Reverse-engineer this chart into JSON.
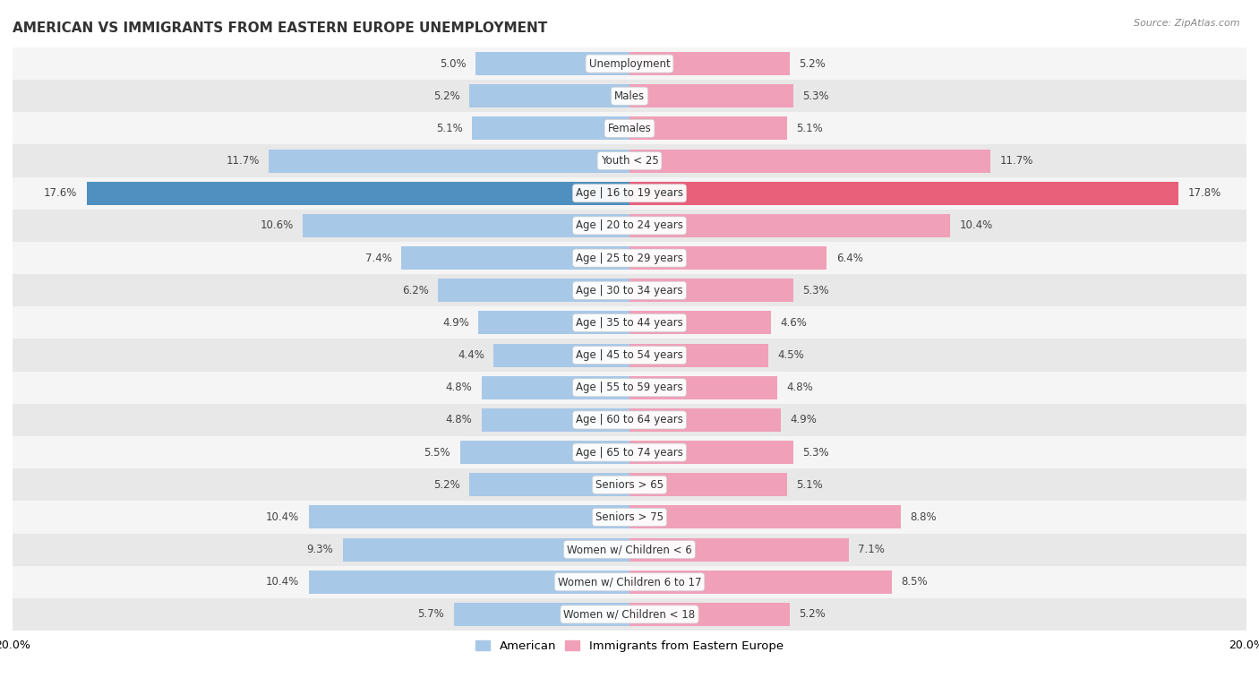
{
  "title": "AMERICAN VS IMMIGRANTS FROM EASTERN EUROPE UNEMPLOYMENT",
  "source": "Source: ZipAtlas.com",
  "categories": [
    "Unemployment",
    "Males",
    "Females",
    "Youth < 25",
    "Age | 16 to 19 years",
    "Age | 20 to 24 years",
    "Age | 25 to 29 years",
    "Age | 30 to 34 years",
    "Age | 35 to 44 years",
    "Age | 45 to 54 years",
    "Age | 55 to 59 years",
    "Age | 60 to 64 years",
    "Age | 65 to 74 years",
    "Seniors > 65",
    "Seniors > 75",
    "Women w/ Children < 6",
    "Women w/ Children 6 to 17",
    "Women w/ Children < 18"
  ],
  "american": [
    5.0,
    5.2,
    5.1,
    11.7,
    17.6,
    10.6,
    7.4,
    6.2,
    4.9,
    4.4,
    4.8,
    4.8,
    5.5,
    5.2,
    10.4,
    9.3,
    10.4,
    5.7
  ],
  "immigrant": [
    5.2,
    5.3,
    5.1,
    11.7,
    17.8,
    10.4,
    6.4,
    5.3,
    4.6,
    4.5,
    4.8,
    4.9,
    5.3,
    5.1,
    8.8,
    7.1,
    8.5,
    5.2
  ],
  "american_color": "#a8c8e8",
  "immigrant_color": "#f0a0b8",
  "american_highlight_color": "#5090c0",
  "immigrant_highlight_color": "#e8607a",
  "highlight_rows": [
    4
  ],
  "xlim": 20.0,
  "row_bg_light": "#f5f5f5",
  "row_bg_dark": "#e8e8e8",
  "legend_american": "American",
  "legend_immigrant": "Immigrants from Eastern Europe",
  "title_fontsize": 11,
  "label_fontsize": 8.5,
  "value_fontsize": 8.5
}
